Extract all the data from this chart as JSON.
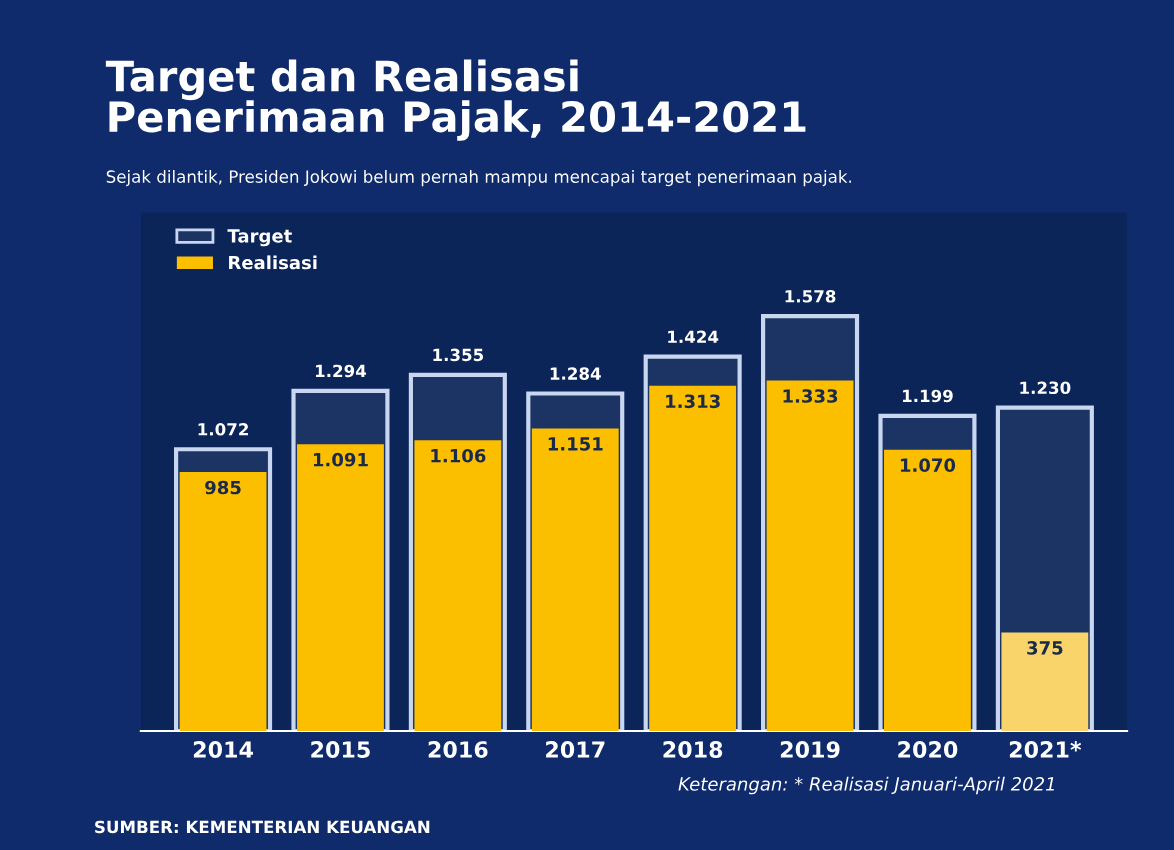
{
  "chart_data": {
    "type": "bar",
    "title": "Target dan Realisasi\nPenerimaan Pajak, 2014-2021",
    "subtitle": "Sejak dilantik, Presiden Jokowi belum pernah mampu mencapai target penerimaan pajak.",
    "categories": [
      "2014",
      "2015",
      "2016",
      "2017",
      "2018",
      "2019",
      "2020",
      "2021*"
    ],
    "series": [
      {
        "name": "Target",
        "color": "#1b3463",
        "values": [
          1072,
          1294,
          1355,
          1284,
          1424,
          1578,
          1199,
          1230
        ],
        "value_labels": [
          "1.072",
          "1.294",
          "1.355",
          "1.284",
          "1.424",
          "1.578",
          "1.199",
          "1.230"
        ]
      },
      {
        "name": "Realisasi",
        "color": "#fbbf00",
        "colors": [
          "#fbbf00",
          "#fbbf00",
          "#fbbf00",
          "#fbbf00",
          "#fbbf00",
          "#fbbf00",
          "#fbbf00",
          "#f9d46a"
        ],
        "values": [
          985,
          1091,
          1106,
          1151,
          1313,
          1333,
          1070,
          375
        ],
        "value_labels": [
          "985",
          "1.091",
          "1.106",
          "1.151",
          "1.313",
          "1.333",
          "1.070",
          "375"
        ]
      }
    ],
    "legend": "top left",
    "annotations": [
      "Keterangan: * Realisasi Januari-April 2021",
      "SUMBER: KEMENTERIAN KEUANGAN"
    ]
  }
}
